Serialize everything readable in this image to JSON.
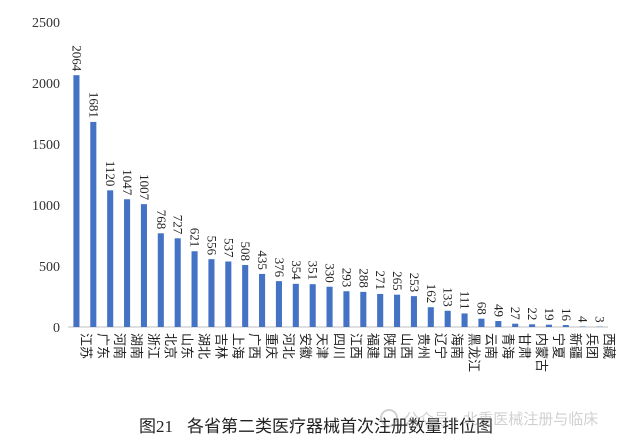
{
  "chart_data": {
    "type": "bar",
    "title": "",
    "xlabel": "",
    "ylabel": "",
    "ylim": [
      0,
      2500
    ],
    "yticks": [
      0,
      500,
      1000,
      1500,
      2000,
      2500
    ],
    "grid": false,
    "legend": "none",
    "bar_color": "#4472C4",
    "categories": [
      "江苏",
      "广东",
      "河南",
      "湖南",
      "浙江",
      "北京",
      "山东",
      "湖北",
      "吉林",
      "上海",
      "广西",
      "重庆",
      "河北",
      "安徽",
      "天津",
      "四川",
      "江西",
      "福建",
      "陕西",
      "山西",
      "贵州",
      "辽宁",
      "海南",
      "黑龙江",
      "云南",
      "青海",
      "甘肃",
      "内蒙古",
      "宁夏",
      "新疆",
      "兵团",
      "西藏"
    ],
    "values": [
      2064,
      1681,
      1120,
      1047,
      1007,
      768,
      727,
      621,
      556,
      537,
      508,
      435,
      376,
      354,
      351,
      330,
      293,
      288,
      271,
      265,
      253,
      162,
      133,
      111,
      68,
      49,
      27,
      22,
      19,
      16,
      4,
      3
    ]
  },
  "caption": {
    "number": "图21",
    "text": "各省第二类医疗器械首次注册数量排位图"
  },
  "watermark": {
    "text": "公众号 · 北重医械注册与临床"
  }
}
